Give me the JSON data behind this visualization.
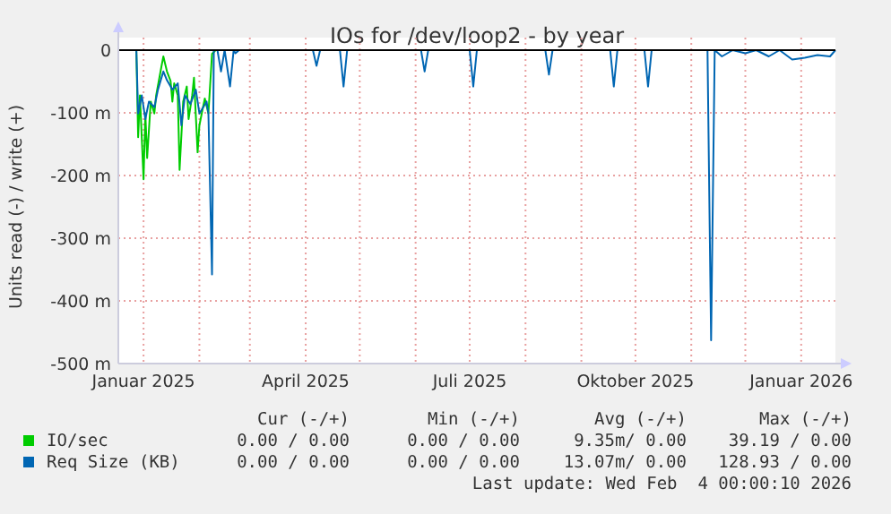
{
  "chart_data": {
    "type": "line",
    "title": "IOs for /dev/loop2 - by year",
    "ylabel": "Units read (-) / write (+)",
    "xlim": [
      "2024-12-18",
      "2026-01-20"
    ],
    "xticks": [
      {
        "value": "2025-01-01",
        "label": "Januar 2025"
      },
      {
        "value": "2025-02-01",
        "label": null
      },
      {
        "value": "2025-03-01",
        "label": null
      },
      {
        "value": "2025-04-01",
        "label": "April 2025"
      },
      {
        "value": "2025-05-01",
        "label": null
      },
      {
        "value": "2025-06-01",
        "label": null
      },
      {
        "value": "2025-07-01",
        "label": "Juli 2025"
      },
      {
        "value": "2025-08-01",
        "label": null
      },
      {
        "value": "2025-09-01",
        "label": null
      },
      {
        "value": "2025-10-01",
        "label": "Oktober 2025"
      },
      {
        "value": "2025-11-01",
        "label": null
      },
      {
        "value": "2025-12-01",
        "label": null
      },
      {
        "value": "2026-01-01",
        "label": "Januar 2026"
      }
    ],
    "ylim": [
      -500,
      0
    ],
    "yticks": [
      {
        "value": -500,
        "label": "-500 m"
      },
      {
        "value": -400,
        "label": "-400 m"
      },
      {
        "value": -300,
        "label": "-300 m"
      },
      {
        "value": -200,
        "label": "-200 m"
      },
      {
        "value": -100,
        "label": "-100 m"
      },
      0
    ],
    "grid": true,
    "legend": "bottom",
    "ref_lines": [
      {
        "axis": "y",
        "value": 0,
        "color": "#000000"
      }
    ],
    "series": [
      {
        "name": "IO/sec",
        "color": "#00cc00",
        "x": [
          "2024-12-18",
          "2024-12-28",
          "2024-12-29",
          "2024-12-30",
          "2025-01-01",
          "2025-01-02",
          "2025-01-03",
          "2025-01-05",
          "2025-01-07",
          "2025-01-08",
          "2025-01-11",
          "2025-01-12",
          "2025-01-14",
          "2025-01-16",
          "2025-01-17",
          "2025-01-18",
          "2025-01-20",
          "2025-01-21",
          "2025-01-23",
          "2025-01-25",
          "2025-01-26",
          "2025-01-28",
          "2025-01-29",
          "2025-01-31",
          "2025-02-01",
          "2025-02-03",
          "2025-02-04",
          "2025-02-06",
          "2025-02-08",
          "2025-02-10",
          "2026-01-20"
        ],
        "values": [
          0,
          0,
          -139,
          -72,
          -206,
          -101,
          -172,
          -82,
          -101,
          -72,
          -25,
          -10,
          -34,
          -49,
          -82,
          -53,
          -72,
          -191,
          -82,
          -58,
          -110,
          -72,
          -44,
          -163,
          -120,
          -91,
          -77,
          -101,
          -6,
          0,
          0
        ]
      },
      {
        "name": "Req Size (KB)",
        "color": "#0066b3",
        "x": [
          "2024-12-18",
          "2024-12-28",
          "2024-12-29",
          "2024-12-31",
          "2025-01-02",
          "2025-01-04",
          "2025-01-07",
          "2025-01-09",
          "2025-01-12",
          "2025-01-14",
          "2025-01-17",
          "2025-01-20",
          "2025-01-22",
          "2025-01-24",
          "2025-01-27",
          "2025-01-30",
          "2025-02-01",
          "2025-02-05",
          "2025-02-06",
          "2025-02-08",
          "2025-02-09",
          "2025-02-11",
          "2025-02-13",
          "2025-02-15",
          "2025-02-18",
          "2025-02-20",
          "2025-02-21",
          "2025-02-23",
          "2025-04-05",
          "2025-04-07",
          "2025-04-09",
          "2025-04-20",
          "2025-04-22",
          "2025-04-24",
          "2025-06-04",
          "2025-06-06",
          "2025-06-08",
          "2025-07-01",
          "2025-07-03",
          "2025-07-05",
          "2025-08-12",
          "2025-08-14",
          "2025-08-16",
          "2025-09-17",
          "2025-09-19",
          "2025-09-21",
          "2025-10-06",
          "2025-10-08",
          "2025-10-10",
          "2025-11-10",
          "2025-11-12",
          "2025-11-14",
          "2025-11-18",
          "2025-11-24",
          "2025-12-01",
          "2025-12-07",
          "2025-12-14",
          "2025-12-20",
          "2025-12-27",
          "2026-01-03",
          "2026-01-10",
          "2026-01-17",
          "2026-01-20"
        ],
        "values": [
          0,
          0,
          -101,
          -72,
          -110,
          -82,
          -91,
          -63,
          -34,
          -48,
          -63,
          -53,
          -120,
          -72,
          -86,
          -63,
          -101,
          -82,
          -101,
          -358,
          0,
          0,
          -34,
          0,
          -58,
          0,
          -5,
          0,
          0,
          -25,
          0,
          0,
          -58,
          0,
          0,
          -34,
          0,
          0,
          -58,
          0,
          0,
          -39,
          0,
          0,
          -58,
          0,
          0,
          -58,
          0,
          0,
          -463,
          0,
          -10,
          0,
          -5,
          0,
          -10,
          0,
          -15,
          -12,
          -8,
          -10,
          0
        ]
      }
    ],
    "annotations": [
      "Cur (-/+)",
      "Min (-/+)",
      "Avg (-/+)",
      "Max (-/+)",
      "0.00 / 0.00",
      "0.00 / 0.00",
      "9.35m/ 0.00",
      "39.19 / 0.00",
      "0.00 / 0.00",
      "0.00 / 0.00",
      "13.07m/ 0.00",
      "128.93 / 0.00",
      "Last update: Wed Feb  4 00:00:10 2026"
    ]
  }
}
